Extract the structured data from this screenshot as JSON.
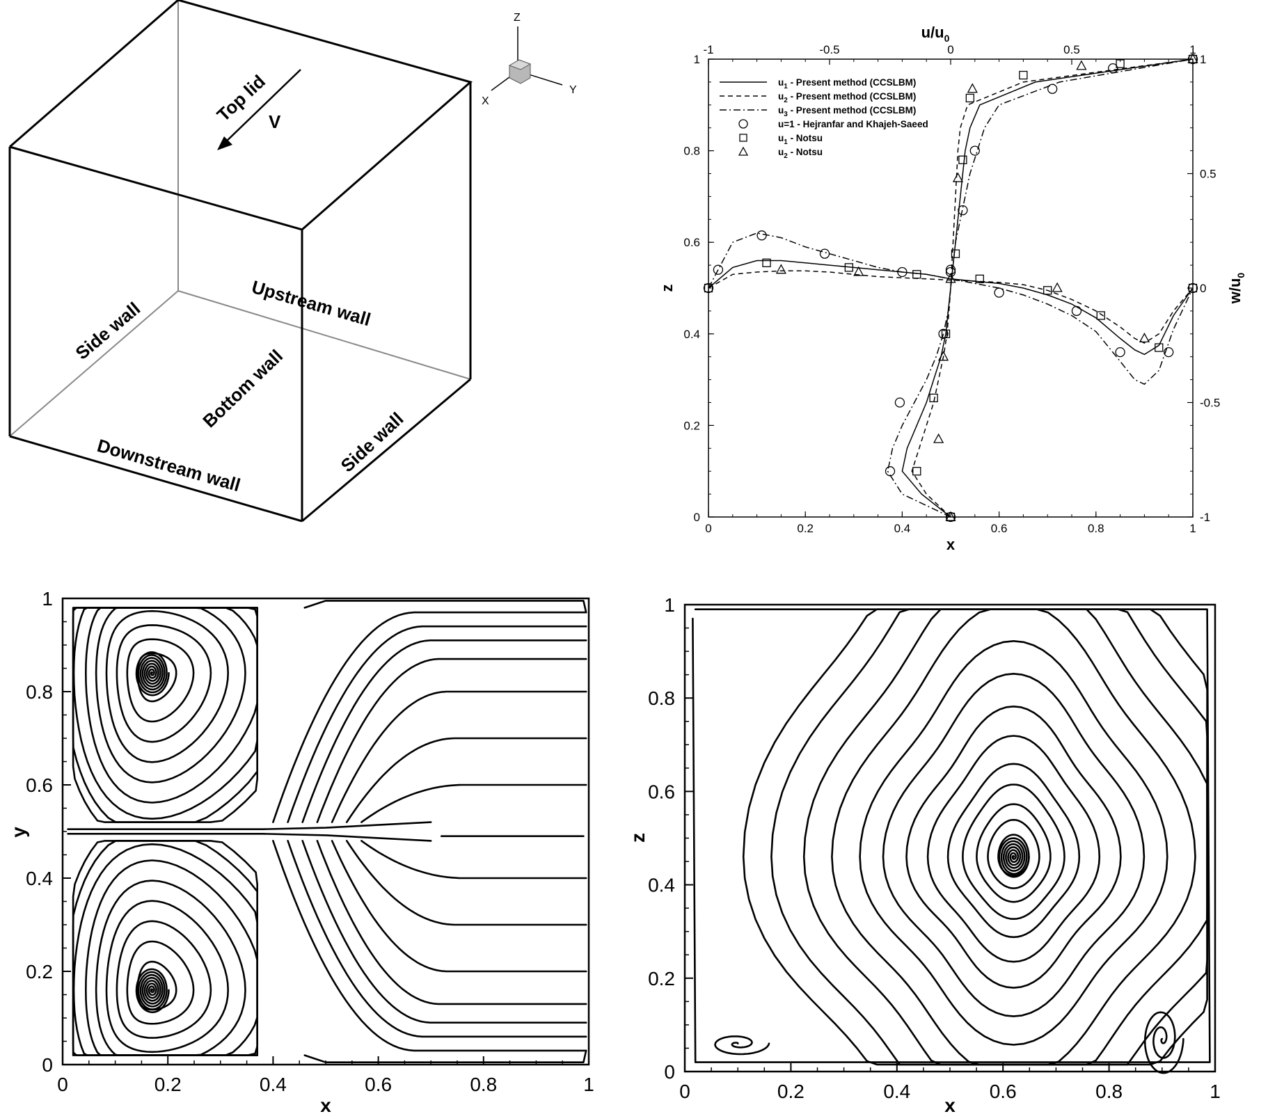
{
  "panel_3d": {
    "labels": {
      "top_lid": "Top lid",
      "velocity": "V",
      "upstream_wall": "Upstream wall",
      "side_wall_left": "Side wall",
      "side_wall_right": "Side wall",
      "bottom_wall": "Bottom wall",
      "downstream_wall": "Downstream wall"
    },
    "triad": {
      "z": "Z",
      "x": "X",
      "y": "Y"
    }
  },
  "chart_data": [
    {
      "type": "line",
      "xlabel": "x",
      "ylabel": "z",
      "top_axis_label": "u/u",
      "top_axis_sub": "0",
      "right_axis_label": "w/u",
      "right_axis_sub": "0",
      "xlim": [
        0,
        1
      ],
      "ylim": [
        0,
        1
      ],
      "top_lim": [
        -1,
        1
      ],
      "right_lim": [
        -1,
        1
      ],
      "x_ticks": [
        "0",
        "0.2",
        "0.4",
        "0.6",
        "0.8",
        "1"
      ],
      "y_ticks": [
        "0",
        "0.2",
        "0.4",
        "0.6",
        "0.8",
        "1"
      ],
      "top_ticks": [
        "-1",
        "-0.5",
        "0",
        "0.5",
        "1"
      ],
      "right_ticks": [
        "-1",
        "-0.5",
        "0",
        "0.5",
        "1"
      ],
      "legend": [
        {
          "style": "solid",
          "sym": "u",
          "sub": "1",
          "text": " - Present method (CCSLBM)"
        },
        {
          "style": "dashed",
          "sym": "u",
          "sub": "2",
          "text": " - Present method (CCSLBM)"
        },
        {
          "style": "dashdot",
          "sym": "u",
          "sub": "3",
          "text": " - Present method (CCSLBM)"
        },
        {
          "style": "circle",
          "sym": "u=1",
          "sub": "",
          "text": " - Hejranfar and Khajeh-Saeed"
        },
        {
          "style": "square",
          "sym": "u",
          "sub": "1",
          "text": " - Notsu"
        },
        {
          "style": "triangle",
          "sym": "u",
          "sub": "2",
          "text": " - Notsu"
        }
      ],
      "u_profiles": {
        "z": [
          0,
          0.05,
          0.1,
          0.15,
          0.2,
          0.25,
          0.3,
          0.35,
          0.4,
          0.45,
          0.5,
          0.55,
          0.6,
          0.65,
          0.7,
          0.75,
          0.8,
          0.85,
          0.9,
          0.95,
          1.0
        ],
        "u1": [
          0,
          -0.12,
          -0.2,
          -0.18,
          -0.14,
          -0.1,
          -0.07,
          -0.04,
          -0.02,
          -0.01,
          0,
          0.01,
          0.02,
          0.03,
          0.04,
          0.05,
          0.06,
          0.08,
          0.12,
          0.35,
          1.0
        ],
        "u2": [
          0,
          -0.1,
          -0.16,
          -0.13,
          -0.1,
          -0.07,
          -0.05,
          -0.03,
          -0.015,
          -0.007,
          0,
          0.005,
          0.01,
          0.015,
          0.02,
          0.025,
          0.03,
          0.04,
          0.07,
          0.3,
          1.0
        ],
        "u3": [
          0,
          -0.2,
          -0.26,
          -0.24,
          -0.2,
          -0.15,
          -0.1,
          -0.06,
          -0.03,
          -0.01,
          0,
          0.01,
          0.02,
          0.04,
          0.06,
          0.08,
          0.11,
          0.14,
          0.2,
          0.45,
          1.0
        ]
      },
      "w_profiles": {
        "x": [
          0,
          0.05,
          0.1,
          0.15,
          0.2,
          0.25,
          0.3,
          0.35,
          0.4,
          0.45,
          0.5,
          0.55,
          0.6,
          0.65,
          0.7,
          0.75,
          0.8,
          0.85,
          0.88,
          0.9,
          0.93,
          0.96,
          1.0
        ],
        "w1": [
          0,
          0.09,
          0.12,
          0.12,
          0.11,
          0.1,
          0.09,
          0.08,
          0.07,
          0.06,
          0.04,
          0.03,
          0.02,
          0.0,
          -0.03,
          -0.07,
          -0.13,
          -0.22,
          -0.27,
          -0.29,
          -0.25,
          -0.12,
          0
        ],
        "w2": [
          0,
          0.06,
          0.07,
          0.075,
          0.075,
          0.07,
          0.06,
          0.05,
          0.045,
          0.04,
          0.035,
          0.03,
          0.025,
          0.015,
          -0.01,
          -0.05,
          -0.1,
          -0.17,
          -0.22,
          -0.24,
          -0.2,
          -0.1,
          0
        ],
        "w3": [
          0,
          0.2,
          0.24,
          0.22,
          0.18,
          0.15,
          0.12,
          0.09,
          0.07,
          0.06,
          0.04,
          0.02,
          0.0,
          -0.03,
          -0.07,
          -0.12,
          -0.19,
          -0.32,
          -0.4,
          -0.42,
          -0.36,
          -0.18,
          0
        ]
      },
      "markers_u": {
        "circle": [
          [
            0,
            0
          ],
          [
            -0.25,
            0.1
          ],
          [
            -0.21,
            0.25
          ],
          [
            -0.03,
            0.4
          ],
          [
            0,
            0.54
          ],
          [
            0.05,
            0.67
          ],
          [
            0.1,
            0.8
          ],
          [
            0.42,
            0.935
          ],
          [
            0.67,
            0.98
          ],
          [
            1,
            1
          ]
        ],
        "square": [
          [
            0,
            0
          ],
          [
            -0.14,
            0.1
          ],
          [
            -0.07,
            0.26
          ],
          [
            -0.02,
            0.4
          ],
          [
            0.02,
            0.575
          ],
          [
            0.05,
            0.78
          ],
          [
            0.08,
            0.915
          ],
          [
            0.3,
            0.965
          ],
          [
            0.7,
            0.99
          ],
          [
            1,
            1
          ]
        ],
        "triangle": [
          [
            0,
            0
          ],
          [
            -0.05,
            0.17
          ],
          [
            -0.03,
            0.35
          ],
          [
            0,
            0.52
          ],
          [
            0.03,
            0.74
          ],
          [
            0.09,
            0.935
          ],
          [
            0.54,
            0.985
          ],
          [
            1,
            1
          ]
        ]
      },
      "markers_w": {
        "circle": [
          [
            0,
            0
          ],
          [
            0.02,
            0.08
          ],
          [
            0.11,
            0.23
          ],
          [
            0.24,
            0.15
          ],
          [
            0.4,
            0.07
          ],
          [
            0.5,
            0.07
          ],
          [
            0.6,
            -0.02
          ],
          [
            0.76,
            -0.1
          ],
          [
            0.85,
            -0.28
          ],
          [
            0.95,
            -0.28
          ],
          [
            1,
            0
          ]
        ],
        "square": [
          [
            0,
            0
          ],
          [
            0.12,
            0.11
          ],
          [
            0.29,
            0.09
          ],
          [
            0.43,
            0.06
          ],
          [
            0.56,
            0.04
          ],
          [
            0.7,
            -0.01
          ],
          [
            0.81,
            -0.12
          ],
          [
            0.93,
            -0.26
          ],
          [
            1,
            0
          ]
        ],
        "triangle": [
          [
            0.15,
            0.08
          ],
          [
            0.31,
            0.07
          ],
          [
            0.72,
            0.0
          ],
          [
            0.9,
            -0.22
          ]
        ]
      }
    },
    {
      "type": "streamline",
      "xlabel": "x",
      "ylabel": "y",
      "xlim": [
        0,
        1
      ],
      "ylim": [
        0,
        1
      ],
      "x_ticks": [
        "0",
        "0.2",
        "0.4",
        "0.6",
        "0.8",
        "1"
      ],
      "y_ticks": [
        "0",
        "0.2",
        "0.4",
        "0.6",
        "0.8",
        "1"
      ],
      "vortex_centers": [
        [
          0.17,
          0.84
        ],
        [
          0.17,
          0.16
        ]
      ]
    },
    {
      "type": "streamline",
      "xlabel": "x",
      "ylabel": "z",
      "xlim": [
        0,
        1
      ],
      "ylim": [
        0,
        1
      ],
      "x_ticks": [
        "0",
        "0.2",
        "0.4",
        "0.6",
        "0.8",
        "1"
      ],
      "y_ticks": [
        "0",
        "0.2",
        "0.4",
        "0.6",
        "0.8",
        "1"
      ],
      "vortex_centers": [
        [
          0.62,
          0.46
        ],
        [
          0.9,
          0.07
        ],
        [
          0.12,
          0.06
        ]
      ]
    }
  ]
}
